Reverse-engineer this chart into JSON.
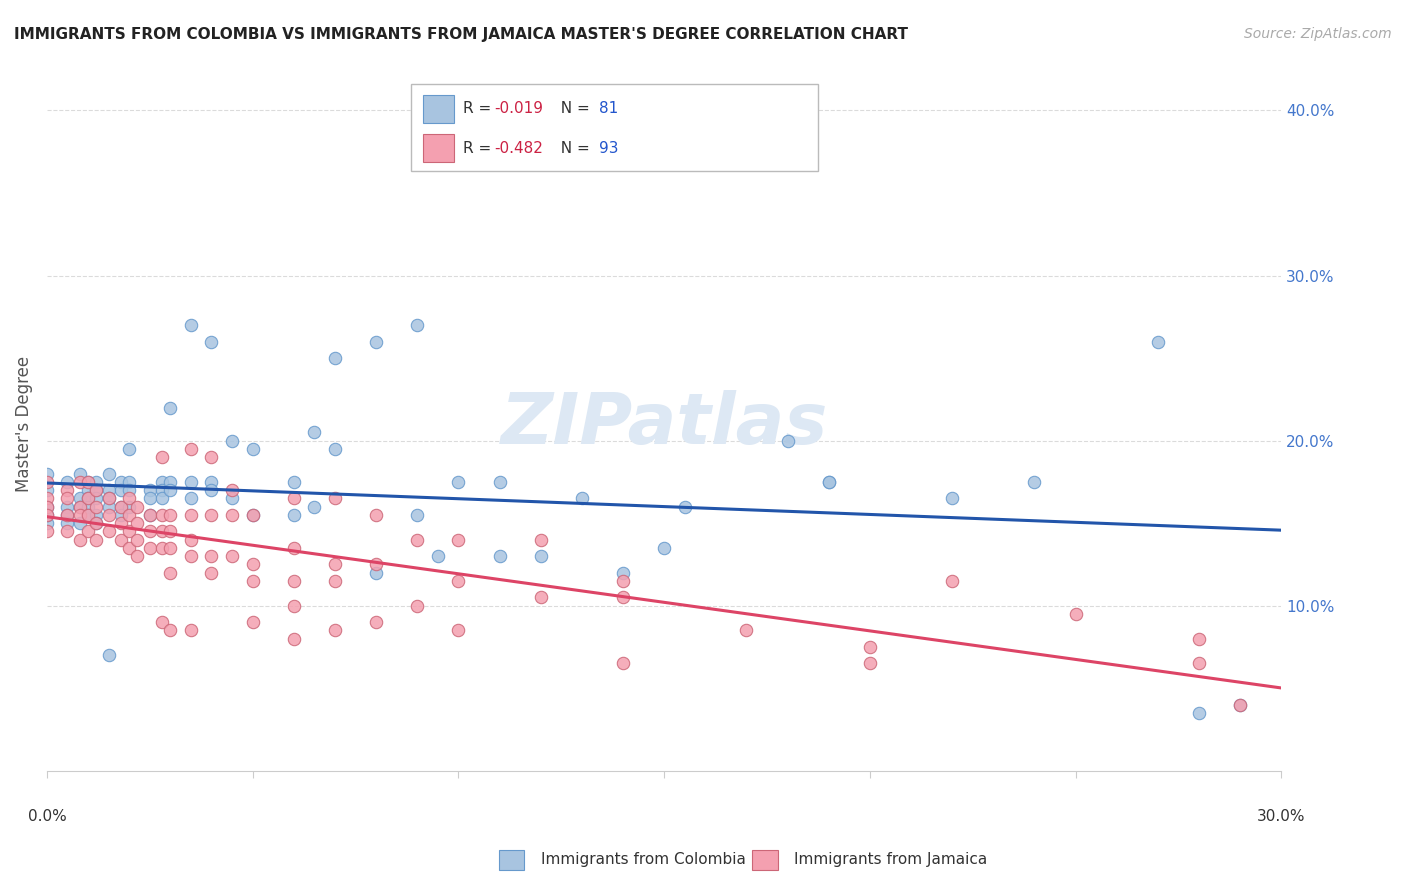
{
  "title": "IMMIGRANTS FROM COLOMBIA VS IMMIGRANTS FROM JAMAICA MASTER'S DEGREE CORRELATION CHART",
  "source": "Source: ZipAtlas.com",
  "ylabel": "Master's Degree",
  "xlim": [
    0.0,
    0.3
  ],
  "ylim": [
    0.0,
    0.42
  ],
  "yticks": [
    0.1,
    0.2,
    0.3,
    0.4
  ],
  "ytick_labels": [
    "10.0%",
    "20.0%",
    "30.0%",
    "40.0%"
  ],
  "colombia_color": "#a8c4e0",
  "colombia_edge": "#6699cc",
  "jamaica_color": "#f4a0b0",
  "jamaica_edge": "#cc6677",
  "colombia_line_color": "#2255aa",
  "jamaica_line_color": "#dd4466",
  "watermark": "ZIPatlas",
  "colombia_scatter": [
    [
      0.0,
      0.18
    ],
    [
      0.0,
      0.17
    ],
    [
      0.0,
      0.16
    ],
    [
      0.0,
      0.15
    ],
    [
      0.0,
      0.155
    ],
    [
      0.005,
      0.175
    ],
    [
      0.005,
      0.16
    ],
    [
      0.005,
      0.155
    ],
    [
      0.005,
      0.15
    ],
    [
      0.008,
      0.18
    ],
    [
      0.008,
      0.165
    ],
    [
      0.008,
      0.16
    ],
    [
      0.008,
      0.15
    ],
    [
      0.01,
      0.175
    ],
    [
      0.01,
      0.17
    ],
    [
      0.01,
      0.165
    ],
    [
      0.01,
      0.16
    ],
    [
      0.01,
      0.155
    ],
    [
      0.012,
      0.175
    ],
    [
      0.012,
      0.17
    ],
    [
      0.012,
      0.165
    ],
    [
      0.012,
      0.155
    ],
    [
      0.012,
      0.15
    ],
    [
      0.015,
      0.18
    ],
    [
      0.015,
      0.17
    ],
    [
      0.015,
      0.165
    ],
    [
      0.015,
      0.16
    ],
    [
      0.018,
      0.175
    ],
    [
      0.018,
      0.17
    ],
    [
      0.018,
      0.16
    ],
    [
      0.018,
      0.155
    ],
    [
      0.02,
      0.195
    ],
    [
      0.02,
      0.175
    ],
    [
      0.02,
      0.17
    ],
    [
      0.02,
      0.16
    ],
    [
      0.025,
      0.17
    ],
    [
      0.025,
      0.165
    ],
    [
      0.028,
      0.175
    ],
    [
      0.028,
      0.17
    ],
    [
      0.028,
      0.165
    ],
    [
      0.03,
      0.22
    ],
    [
      0.03,
      0.175
    ],
    [
      0.03,
      0.17
    ],
    [
      0.035,
      0.175
    ],
    [
      0.035,
      0.165
    ],
    [
      0.04,
      0.175
    ],
    [
      0.04,
      0.17
    ],
    [
      0.045,
      0.165
    ],
    [
      0.05,
      0.155
    ],
    [
      0.06,
      0.155
    ],
    [
      0.065,
      0.16
    ],
    [
      0.08,
      0.12
    ],
    [
      0.09,
      0.155
    ],
    [
      0.095,
      0.13
    ],
    [
      0.1,
      0.175
    ],
    [
      0.11,
      0.13
    ],
    [
      0.12,
      0.13
    ],
    [
      0.13,
      0.165
    ],
    [
      0.14,
      0.12
    ],
    [
      0.15,
      0.135
    ],
    [
      0.155,
      0.16
    ],
    [
      0.06,
      0.175
    ],
    [
      0.07,
      0.25
    ],
    [
      0.08,
      0.26
    ],
    [
      0.09,
      0.27
    ],
    [
      0.07,
      0.195
    ],
    [
      0.065,
      0.205
    ],
    [
      0.045,
      0.2
    ],
    [
      0.05,
      0.195
    ],
    [
      0.035,
      0.27
    ],
    [
      0.04,
      0.26
    ],
    [
      0.18,
      0.2
    ],
    [
      0.19,
      0.175
    ],
    [
      0.22,
      0.165
    ],
    [
      0.24,
      0.175
    ],
    [
      0.27,
      0.26
    ],
    [
      0.29,
      0.04
    ],
    [
      0.28,
      0.035
    ],
    [
      0.015,
      0.07
    ],
    [
      0.11,
      0.175
    ],
    [
      0.19,
      0.175
    ],
    [
      0.025,
      0.155
    ]
  ],
  "jamaica_scatter": [
    [
      0.0,
      0.175
    ],
    [
      0.0,
      0.165
    ],
    [
      0.0,
      0.16
    ],
    [
      0.0,
      0.155
    ],
    [
      0.0,
      0.145
    ],
    [
      0.005,
      0.17
    ],
    [
      0.005,
      0.165
    ],
    [
      0.005,
      0.155
    ],
    [
      0.005,
      0.145
    ],
    [
      0.008,
      0.175
    ],
    [
      0.008,
      0.16
    ],
    [
      0.008,
      0.155
    ],
    [
      0.008,
      0.14
    ],
    [
      0.01,
      0.175
    ],
    [
      0.01,
      0.165
    ],
    [
      0.01,
      0.155
    ],
    [
      0.01,
      0.145
    ],
    [
      0.012,
      0.17
    ],
    [
      0.012,
      0.16
    ],
    [
      0.012,
      0.15
    ],
    [
      0.012,
      0.14
    ],
    [
      0.015,
      0.165
    ],
    [
      0.015,
      0.155
    ],
    [
      0.015,
      0.145
    ],
    [
      0.018,
      0.16
    ],
    [
      0.018,
      0.15
    ],
    [
      0.018,
      0.14
    ],
    [
      0.02,
      0.165
    ],
    [
      0.02,
      0.155
    ],
    [
      0.02,
      0.145
    ],
    [
      0.02,
      0.135
    ],
    [
      0.022,
      0.16
    ],
    [
      0.022,
      0.15
    ],
    [
      0.022,
      0.14
    ],
    [
      0.022,
      0.13
    ],
    [
      0.025,
      0.155
    ],
    [
      0.025,
      0.145
    ],
    [
      0.025,
      0.135
    ],
    [
      0.028,
      0.19
    ],
    [
      0.028,
      0.155
    ],
    [
      0.028,
      0.145
    ],
    [
      0.028,
      0.135
    ],
    [
      0.028,
      0.09
    ],
    [
      0.03,
      0.155
    ],
    [
      0.03,
      0.145
    ],
    [
      0.03,
      0.135
    ],
    [
      0.03,
      0.12
    ],
    [
      0.03,
      0.085
    ],
    [
      0.035,
      0.195
    ],
    [
      0.035,
      0.155
    ],
    [
      0.035,
      0.14
    ],
    [
      0.035,
      0.13
    ],
    [
      0.035,
      0.085
    ],
    [
      0.04,
      0.19
    ],
    [
      0.04,
      0.155
    ],
    [
      0.04,
      0.13
    ],
    [
      0.04,
      0.12
    ],
    [
      0.045,
      0.17
    ],
    [
      0.045,
      0.155
    ],
    [
      0.045,
      0.13
    ],
    [
      0.05,
      0.155
    ],
    [
      0.05,
      0.125
    ],
    [
      0.05,
      0.115
    ],
    [
      0.05,
      0.09
    ],
    [
      0.06,
      0.165
    ],
    [
      0.06,
      0.135
    ],
    [
      0.06,
      0.115
    ],
    [
      0.06,
      0.1
    ],
    [
      0.06,
      0.08
    ],
    [
      0.07,
      0.165
    ],
    [
      0.07,
      0.125
    ],
    [
      0.07,
      0.115
    ],
    [
      0.07,
      0.085
    ],
    [
      0.08,
      0.155
    ],
    [
      0.08,
      0.125
    ],
    [
      0.08,
      0.09
    ],
    [
      0.09,
      0.14
    ],
    [
      0.09,
      0.1
    ],
    [
      0.1,
      0.14
    ],
    [
      0.1,
      0.115
    ],
    [
      0.1,
      0.085
    ],
    [
      0.12,
      0.14
    ],
    [
      0.12,
      0.105
    ],
    [
      0.14,
      0.115
    ],
    [
      0.14,
      0.105
    ],
    [
      0.14,
      0.065
    ],
    [
      0.17,
      0.085
    ],
    [
      0.2,
      0.075
    ],
    [
      0.2,
      0.065
    ],
    [
      0.22,
      0.115
    ],
    [
      0.25,
      0.095
    ],
    [
      0.28,
      0.08
    ],
    [
      0.28,
      0.065
    ],
    [
      0.29,
      0.04
    ]
  ]
}
